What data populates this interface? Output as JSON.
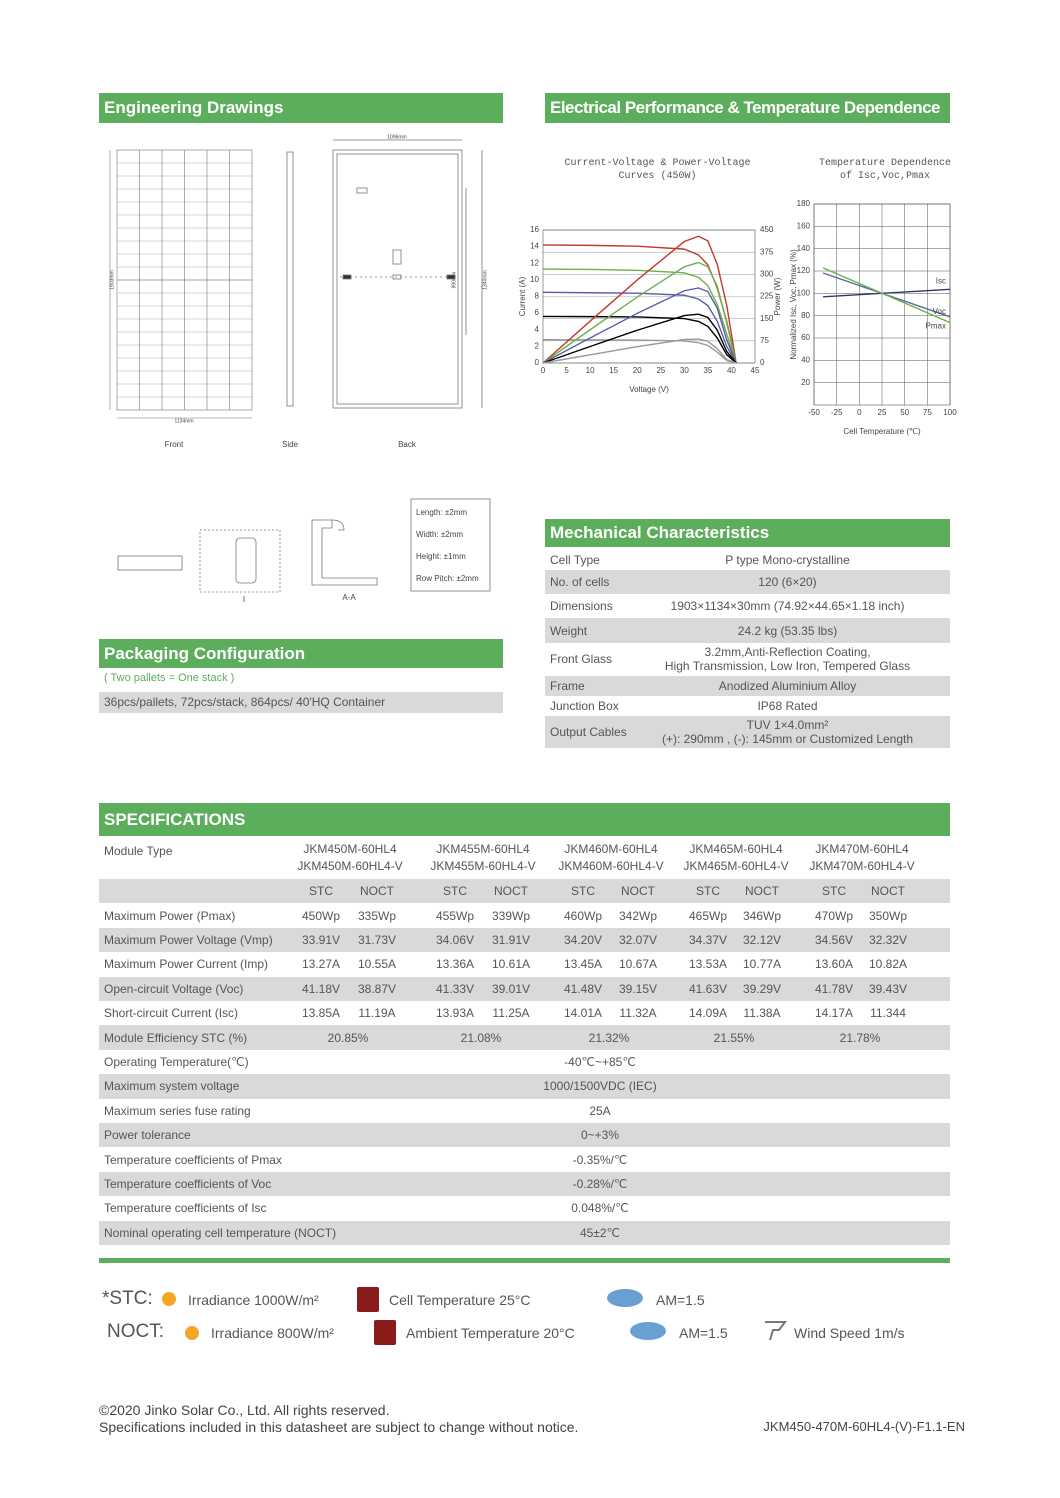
{
  "engineering": {
    "title": "Engineering Drawings",
    "views": [
      "Front",
      "Side",
      "Back"
    ],
    "dimensions": [
      "1096mm",
      "1134mm",
      "1903mm",
      "990mm",
      "1340mm"
    ],
    "section_labels": [
      "I",
      "A-A"
    ],
    "tolerances": [
      "Length: ±2mm",
      "Width: ±2mm",
      "Height: ±1mm",
      "Row Pitch: ±2mm"
    ]
  },
  "electrical": {
    "title": "Electrical Performance & Temperature Dependence"
  },
  "chart_data": [
    {
      "type": "line",
      "title": "Current-Voltage & Power-Voltage Curves (450W)",
      "x_label": "Voltage (V)",
      "y_label": "Current (A)",
      "y2_label": "Power (W)",
      "xlim": [
        0,
        45
      ],
      "xticks": [
        0,
        5,
        10,
        15,
        20,
        25,
        30,
        35,
        40,
        45
      ],
      "ylim": [
        0,
        16
      ],
      "yticks": [
        0,
        2,
        4,
        6,
        8,
        10,
        12,
        14,
        16
      ],
      "y2lim": [
        0,
        450
      ],
      "y2ticks": [
        0,
        75,
        150,
        225,
        300,
        375,
        450
      ],
      "grid": true,
      "x": [
        0,
        10,
        20,
        30,
        33,
        35,
        37,
        39,
        41
      ],
      "series": [
        {
          "color": "#c0392b",
          "values": [
            14.2,
            14.15,
            14.05,
            13.7,
            13.0,
            11.8,
            9.0,
            5.0,
            0
          ]
        },
        {
          "color": "#6ab04c",
          "values": [
            11.3,
            11.25,
            11.15,
            10.85,
            10.3,
            9.3,
            7.0,
            3.5,
            0
          ]
        },
        {
          "color": "#5b5ea6",
          "values": [
            8.5,
            8.45,
            8.4,
            8.15,
            7.7,
            6.9,
            5.0,
            2.0,
            0
          ]
        },
        {
          "color": "#000000",
          "values": [
            5.6,
            5.58,
            5.54,
            5.35,
            5.0,
            4.4,
            3.0,
            1.0,
            0
          ]
        },
        {
          "color": "#999999",
          "values": [
            2.8,
            2.79,
            2.76,
            2.65,
            2.45,
            2.1,
            1.3,
            0.3,
            0
          ]
        },
        {
          "color": "#c0392b",
          "axis": "y2",
          "values": [
            0,
            141.5,
            281,
            411,
            429,
            413,
            333,
            195,
            0
          ]
        },
        {
          "color": "#6ab04c",
          "axis": "y2",
          "values": [
            0,
            112.5,
            223,
            325.5,
            340,
            325.5,
            259,
            136.5,
            0
          ]
        },
        {
          "color": "#5b5ea6",
          "axis": "y2",
          "values": [
            0,
            84.5,
            168,
            244.5,
            254,
            241.5,
            185,
            78,
            0
          ]
        },
        {
          "color": "#000000",
          "axis": "y2",
          "values": [
            0,
            55.8,
            110.8,
            160.5,
            165,
            154,
            111,
            39,
            0
          ]
        },
        {
          "color": "#999999",
          "axis": "y2",
          "values": [
            0,
            27.9,
            55.2,
            79.5,
            80.9,
            73.5,
            48.1,
            11.7,
            0
          ]
        }
      ]
    },
    {
      "type": "line",
      "title": "Temperature Dependence of Isc,Voc,Pmax",
      "x_label": "Cell Temperature (℃)",
      "y_label": "Normalized Isc, Voc, Pmax (%)",
      "xlim": [
        -50,
        100
      ],
      "xticks": [
        -50,
        -25,
        0,
        25,
        50,
        75,
        100
      ],
      "ylim": [
        0,
        180
      ],
      "yticks": [
        20,
        40,
        60,
        80,
        100,
        120,
        140,
        160,
        180
      ],
      "grid": true,
      "x": [
        -40,
        100
      ],
      "series": [
        {
          "name": "Isc",
          "color": "#2e3a6e",
          "values": [
            96.9,
            103.6
          ]
        },
        {
          "name": "Voc",
          "color": "#5a6b9a",
          "values": [
            118.2,
            79
          ]
        },
        {
          "name": "Pmax",
          "color": "#6ab04c",
          "values": [
            122.8,
            73.8
          ]
        }
      ]
    }
  ],
  "mechanical": {
    "title": "Mechanical Characteristics",
    "rows": [
      [
        "Cell Type",
        "P type Mono-crystalline"
      ],
      [
        "No. of cells",
        "120 (6×20)"
      ],
      [
        "Dimensions",
        "1903×1134×30mm (74.92×44.65×1.18 inch)"
      ],
      [
        "Weight",
        "24.2 kg (53.35 lbs)"
      ],
      [
        "Front Glass",
        "3.2mm,Anti-Reflection Coating,\nHigh Transmission, Low Iron, Tempered Glass"
      ],
      [
        "Frame",
        "Anodized Aluminium Alloy"
      ],
      [
        "Junction Box",
        "IP68 Rated"
      ],
      [
        "Output Cables",
        "TUV  1×4.0mm²\n(+): 290mm , (-): 145mm or Customized Length"
      ]
    ]
  },
  "packaging": {
    "title": "Packaging Configuration",
    "note": "( Two pallets = One stack )",
    "text": "36pcs/pallets, 72pcs/stack, 864pcs/ 40'HQ Container"
  },
  "specifications": {
    "title": "SPECIFICATIONS",
    "module_type_label": "Module Type",
    "models": [
      [
        "JKM450M-60HL4",
        "JKM450M-60HL4-V"
      ],
      [
        "JKM455M-60HL4",
        "JKM455M-60HL4-V"
      ],
      [
        "JKM460M-60HL4",
        "JKM460M-60HL4-V"
      ],
      [
        "JKM465M-60HL4",
        "JKM465M-60HL4-V"
      ],
      [
        "JKM470M-60HL4",
        "JKM470M-60HL4-V"
      ]
    ],
    "conditions": [
      "STC",
      "NOCT"
    ],
    "rows": [
      {
        "label": "Maximum Power (Pmax)",
        "values": [
          "450Wp",
          "335Wp",
          "455Wp",
          "339Wp",
          "460Wp",
          "342Wp",
          "465Wp",
          "346Wp",
          "470Wp",
          "350Wp"
        ]
      },
      {
        "label": "Maximum Power Voltage (Vmp)",
        "values": [
          "33.91V",
          "31.73V",
          "34.06V",
          "31.91V",
          "34.20V",
          "32.07V",
          "34.37V",
          "32.12V",
          "34.56V",
          "32.32V"
        ]
      },
      {
        "label": "Maximum Power Current (Imp)",
        "values": [
          "13.27A",
          "10.55A",
          "13.36A",
          "10.61A",
          "13.45A",
          "10.67A",
          "13.53A",
          "10.77A",
          "13.60A",
          "10.82A"
        ]
      },
      {
        "label": "Open-circuit Voltage (Voc)",
        "values": [
          "41.18V",
          "38.87V",
          "41.33V",
          "39.01V",
          "41.48V",
          "39.15V",
          "41.63V",
          "39.29V",
          "41.78V",
          "39.43V"
        ]
      },
      {
        "label": "Short-circuit Current (Isc)",
        "values": [
          "13.85A",
          "11.19A",
          "13.93A",
          "11.25A",
          "14.01A",
          "11.32A",
          "14.09A",
          "11.38A",
          "14.17A",
          "11.344"
        ]
      }
    ],
    "efficiency": {
      "label": "Module Efficiency STC (%)",
      "values": [
        "20.85%",
        "21.08%",
        "21.32%",
        "21.55%",
        "21.78%"
      ]
    },
    "common_rows": [
      [
        "Operating Temperature(℃)",
        "-40℃~+85℃"
      ],
      [
        "Maximum system voltage",
        "1000/1500VDC (IEC)"
      ],
      [
        "Maximum series fuse rating",
        "25A"
      ],
      [
        "Power tolerance",
        "0~+3%"
      ],
      [
        "Temperature coefficients of Pmax",
        "-0.35%/℃"
      ],
      [
        "Temperature coefficients of Voc",
        "-0.28%/℃"
      ],
      [
        "Temperature coefficients of Isc",
        "0.048%/℃"
      ],
      [
        "Nominal operating cell temperature  (NOCT)",
        "45±2℃"
      ]
    ]
  },
  "conditions": {
    "stc": {
      "label": "*STC:",
      "items": [
        "Irradiance 1000W/m²",
        "Cell Temperature 25°C",
        "AM=1.5"
      ]
    },
    "noct": {
      "label": "NOCT:",
      "items": [
        "Irradiance 800W/m²",
        "Ambient Temperature 20°C",
        "AM=1.5",
        "Wind Speed 1m/s"
      ]
    }
  },
  "footer": {
    "copyright": "©2020 Jinko Solar Co., Ltd. All rights reserved.",
    "notice": "Specifications included in this datasheet are subject to change without notice.",
    "code": "JKM450-470M-60HL4-(V)-F1.1-EN"
  }
}
